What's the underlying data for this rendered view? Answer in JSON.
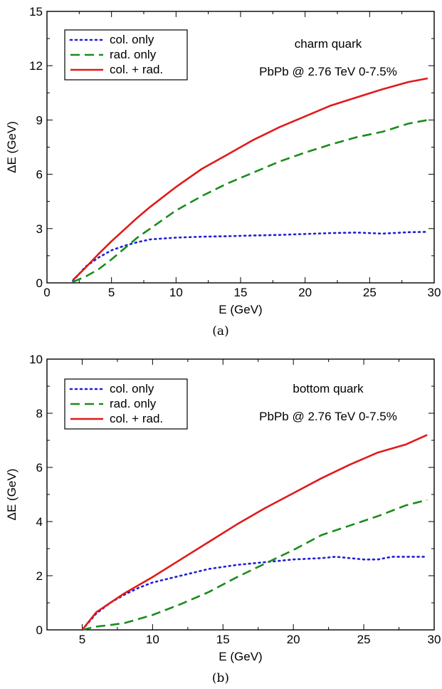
{
  "chart_data": [
    {
      "type": "line",
      "caption": "(a)",
      "xlabel": "E (GeV)",
      "ylabel": "ΔE (GeV)",
      "xlim": [
        0,
        30
      ],
      "ylim": [
        0,
        15
      ],
      "xticks": [
        0,
        5,
        10,
        15,
        20,
        25,
        30
      ],
      "yticks": [
        0,
        3,
        6,
        9,
        12,
        15
      ],
      "grid": false,
      "legend_position": "top-left",
      "annotations": [
        "charm quark",
        "PbPb @ 2.76 TeV 0-7.5%"
      ],
      "series": [
        {
          "name": "col. only",
          "color": "#1f1fd6",
          "dash": "dotted",
          "x": [
            2,
            3,
            4,
            5,
            6,
            7,
            8,
            10,
            12,
            14,
            16,
            18,
            20,
            22,
            24,
            26,
            28,
            29.5
          ],
          "y": [
            0.1,
            0.9,
            1.4,
            1.8,
            2.05,
            2.25,
            2.4,
            2.5,
            2.55,
            2.58,
            2.62,
            2.65,
            2.7,
            2.75,
            2.78,
            2.72,
            2.8,
            2.82
          ]
        },
        {
          "name": "rad. only",
          "color": "#1a8c1a",
          "dash": "dashed",
          "x": [
            2,
            3,
            4,
            5,
            6,
            7,
            8,
            10,
            12,
            14,
            16,
            18,
            20,
            22,
            24,
            26,
            28,
            29.5
          ],
          "y": [
            0.05,
            0.35,
            0.75,
            1.3,
            1.9,
            2.5,
            3.0,
            4.0,
            4.8,
            5.5,
            6.1,
            6.7,
            7.2,
            7.65,
            8.05,
            8.35,
            8.8,
            9.0
          ]
        },
        {
          "name": "col. + rad.",
          "color": "#e01a1a",
          "dash": "solid",
          "x": [
            2,
            3,
            4,
            5,
            6,
            7,
            8,
            10,
            12,
            14,
            16,
            18,
            20,
            22,
            24,
            26,
            28,
            29.5
          ],
          "y": [
            0.15,
            0.85,
            1.6,
            2.3,
            2.95,
            3.6,
            4.2,
            5.3,
            6.3,
            7.1,
            7.9,
            8.6,
            9.2,
            9.8,
            10.25,
            10.7,
            11.1,
            11.3
          ]
        }
      ]
    },
    {
      "type": "line",
      "caption": "(b)",
      "xlabel": "E (GeV)",
      "ylabel": "ΔE (GeV)",
      "xlim": [
        2.5,
        30
      ],
      "ylim": [
        0,
        10
      ],
      "xticks": [
        5,
        10,
        15,
        20,
        25,
        30
      ],
      "yticks": [
        0,
        2,
        4,
        6,
        8,
        10
      ],
      "grid": false,
      "legend_position": "top-left",
      "annotations": [
        "bottom quark",
        "PbPb @ 2.76 TeV 0-7.5%"
      ],
      "series": [
        {
          "name": "col. only",
          "color": "#1f1fd6",
          "dash": "dotted",
          "x": [
            5,
            6,
            7,
            8,
            9,
            10,
            12,
            14,
            16,
            18,
            20,
            22,
            23,
            24,
            25,
            26,
            27,
            28,
            29.5
          ],
          "y": [
            0,
            0.6,
            1.0,
            1.3,
            1.55,
            1.75,
            2.0,
            2.25,
            2.4,
            2.5,
            2.6,
            2.65,
            2.7,
            2.65,
            2.6,
            2.6,
            2.7,
            2.7,
            2.7
          ]
        },
        {
          "name": "rad. only",
          "color": "#1a8c1a",
          "dash": "dashed",
          "x": [
            5,
            6,
            7,
            8,
            10,
            12,
            14,
            16,
            18,
            20,
            22,
            24,
            26,
            28,
            29.5
          ],
          "y": [
            0,
            0.12,
            0.18,
            0.25,
            0.55,
            0.95,
            1.4,
            1.95,
            2.45,
            2.95,
            3.5,
            3.85,
            4.2,
            4.6,
            4.8
          ]
        },
        {
          "name": "col. + rad.",
          "color": "#e01a1a",
          "dash": "solid",
          "x": [
            5,
            6,
            7,
            8,
            10,
            12,
            14,
            16,
            18,
            20,
            22,
            24,
            26,
            28,
            29.5
          ],
          "y": [
            0,
            0.65,
            1.0,
            1.35,
            1.95,
            2.6,
            3.25,
            3.9,
            4.5,
            5.05,
            5.6,
            6.1,
            6.55,
            6.85,
            7.2
          ]
        }
      ]
    }
  ]
}
